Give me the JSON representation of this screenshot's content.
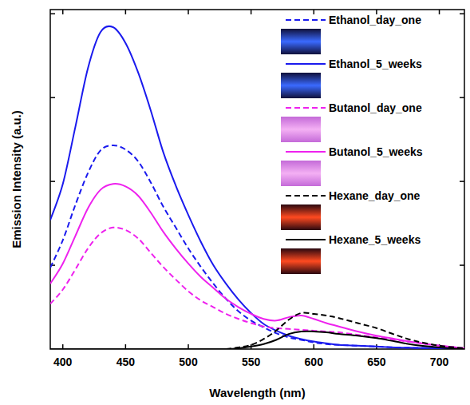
{
  "chart_data": {
    "type": "line",
    "x_label": "Wavelength (nm)",
    "y_label": "Emission Intensity (a.u.)",
    "x": [
      390,
      400,
      410,
      420,
      430,
      440,
      450,
      460,
      470,
      480,
      490,
      500,
      510,
      520,
      530,
      540,
      550,
      560,
      570,
      580,
      590,
      600,
      610,
      620,
      635,
      650,
      665,
      680,
      700,
      720
    ],
    "xlim": [
      390,
      720
    ],
    "xticks": [
      400,
      450,
      500,
      550,
      600,
      650,
      700
    ],
    "ylim": [
      0,
      4.05
    ],
    "yticks": [
      1,
      2,
      3,
      4
    ],
    "tick_labels": "x",
    "legend": "upper right",
    "series": [
      {
        "name": "Ethanol_day_one",
        "color": "#1a1aee",
        "line_style": "dashed",
        "values": [
          0.97,
          1.3,
          1.72,
          2.1,
          2.37,
          2.43,
          2.38,
          2.24,
          1.99,
          1.7,
          1.45,
          1.2,
          0.98,
          0.78,
          0.6,
          0.45,
          0.34,
          0.26,
          0.19,
          0.14,
          0.11,
          0.08,
          0.06,
          0.05,
          0.04,
          0.03,
          0.02,
          0.015,
          0.01,
          0
        ]
      },
      {
        "name": "Ethanol_5_weeks",
        "color": "#1a1aee",
        "line_style": "solid",
        "values": [
          1.54,
          1.97,
          2.65,
          3.35,
          3.78,
          3.84,
          3.65,
          3.3,
          2.85,
          2.35,
          1.95,
          1.6,
          1.28,
          1.0,
          0.78,
          0.59,
          0.43,
          0.3,
          0.22,
          0.16,
          0.12,
          0.09,
          0.07,
          0.05,
          0.04,
          0.03,
          0.02,
          0.015,
          0.01,
          0
        ]
      },
      {
        "name": "Butanol_day_one",
        "color": "#ee22ee",
        "line_style": "dashed",
        "values": [
          0.54,
          0.71,
          0.95,
          1.2,
          1.38,
          1.45,
          1.42,
          1.32,
          1.15,
          0.98,
          0.83,
          0.69,
          0.58,
          0.5,
          0.42,
          0.36,
          0.31,
          0.27,
          0.25,
          0.24,
          0.23,
          0.22,
          0.21,
          0.2,
          0.17,
          0.14,
          0.11,
          0.08,
          0.04,
          0.01
        ]
      },
      {
        "name": "Butanol_5_weeks",
        "color": "#ee22ee",
        "line_style": "solid",
        "values": [
          0.78,
          1.02,
          1.35,
          1.68,
          1.9,
          1.97,
          1.94,
          1.83,
          1.63,
          1.4,
          1.2,
          1.02,
          0.86,
          0.73,
          0.6,
          0.5,
          0.42,
          0.36,
          0.34,
          0.38,
          0.4,
          0.36,
          0.31,
          0.27,
          0.21,
          0.16,
          0.12,
          0.08,
          0.04,
          0.01
        ]
      },
      {
        "name": "Hexane_day_one",
        "color": "#000000",
        "line_style": "dashed",
        "values": [
          0,
          0,
          0,
          0,
          0,
          0,
          0,
          0,
          0,
          0,
          0,
          0,
          0,
          0,
          0,
          0.02,
          0.05,
          0.12,
          0.22,
          0.35,
          0.43,
          0.42,
          0.4,
          0.37,
          0.31,
          0.25,
          0.17,
          0.1,
          0.04,
          0.01
        ]
      },
      {
        "name": "Hexane_5_weeks",
        "color": "#000000",
        "line_style": "solid",
        "values": [
          0,
          0,
          0,
          0,
          0,
          0,
          0,
          0,
          0,
          0,
          0,
          0,
          0,
          0,
          0,
          0.01,
          0.03,
          0.06,
          0.11,
          0.18,
          0.21,
          0.21,
          0.2,
          0.18,
          0.16,
          0.13,
          0.09,
          0.05,
          0.02,
          0
        ]
      }
    ]
  }
}
